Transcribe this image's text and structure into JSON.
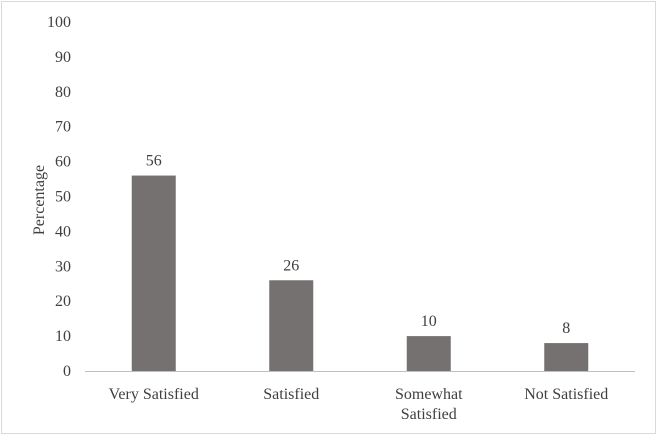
{
  "chart_data": {
    "type": "bar",
    "categories": [
      [
        "Very Satisfied"
      ],
      [
        "Satisfied"
      ],
      [
        "Somewhat",
        "Satisfied"
      ],
      [
        "Not Satisfied"
      ]
    ],
    "values": [
      56,
      26,
      10,
      8
    ],
    "data_labels": [
      "56",
      "26",
      "10",
      "8"
    ],
    "title": "",
    "xlabel": "",
    "ylabel": "Percentage",
    "ylim": [
      0,
      100
    ],
    "yticks": [
      0,
      10,
      20,
      30,
      40,
      50,
      60,
      70,
      80,
      90,
      100
    ],
    "grid": false,
    "legend": "none",
    "bar_color": "#767171",
    "axis_color": "#bfbfbf",
    "text_color": "#404040"
  }
}
